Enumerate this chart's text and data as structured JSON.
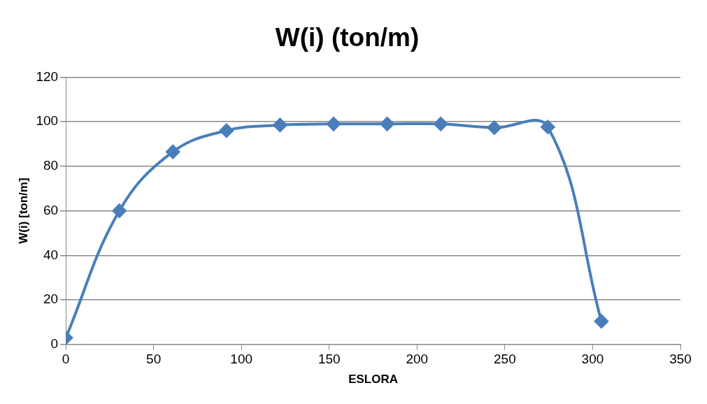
{
  "chart_data": {
    "type": "line",
    "title": "W(i) (ton/m)",
    "xlabel": "ESLORA",
    "ylabel": "W(i) [ton/m]",
    "x": [
      0,
      30.5,
      61,
      91.5,
      122,
      152.5,
      183,
      213.5,
      244,
      274.5,
      305
    ],
    "series": [
      {
        "color": "#4a7ebb",
        "values": [
          3,
          60,
          86.5,
          96,
          98.5,
          99,
          99,
          99,
          97.3,
          97.6,
          10.4
        ]
      }
    ],
    "xlim": [
      0,
      350
    ],
    "xticks": [
      0,
      50,
      100,
      150,
      200,
      250,
      300,
      350
    ],
    "ylim": [
      0,
      120
    ],
    "yticks": [
      0,
      20,
      40,
      60,
      80,
      100,
      120
    ],
    "grid": "y",
    "marker": "diamond",
    "line_style": "solid"
  }
}
